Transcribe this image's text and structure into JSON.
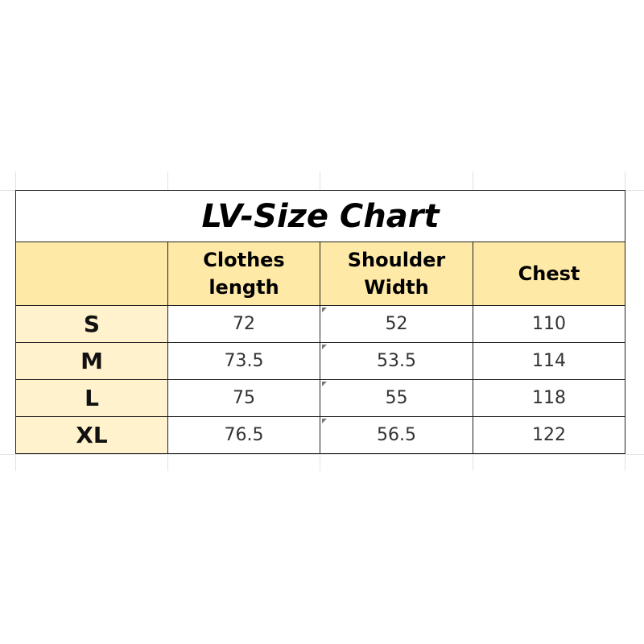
{
  "title": "LV-Size Chart",
  "table": {
    "header": [
      "",
      "Clothes length",
      "Shoulder Width",
      "Chest"
    ],
    "rows": [
      [
        "S",
        72,
        52,
        110
      ],
      [
        "M",
        73.5,
        53.5,
        114
      ],
      [
        "L",
        75,
        55,
        118
      ],
      [
        "XL",
        76.5,
        56.5,
        122
      ]
    ]
  }
}
